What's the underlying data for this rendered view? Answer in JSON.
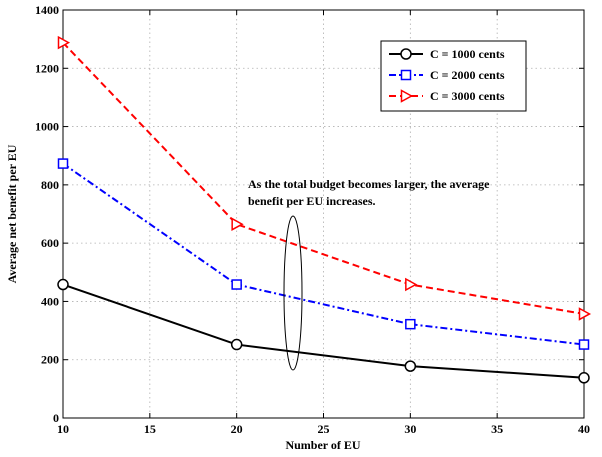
{
  "chart_data": {
    "type": "line",
    "xlabel": "Number of EU",
    "ylabel": "Average net benefit per EU",
    "xlim": [
      10,
      40
    ],
    "ylim": [
      0,
      1400
    ],
    "xticks": [
      10,
      15,
      20,
      25,
      30,
      35,
      40
    ],
    "yticks": [
      0,
      200,
      400,
      600,
      800,
      1000,
      1200,
      1400
    ],
    "grid": true,
    "legend_position": "top-right",
    "x": [
      10,
      20,
      30,
      40
    ],
    "series": [
      {
        "name": "C = 1000 cents",
        "values": [
          458,
          252,
          178,
          138
        ],
        "color": "#000000",
        "dash": "solid",
        "marker": "circle"
      },
      {
        "name": "C = 2000 cents",
        "values": [
          873,
          458,
          322,
          252
        ],
        "color": "#0000ff",
        "dash": "dashdot",
        "marker": "square"
      },
      {
        "name": "C = 3000 cents",
        "values": [
          1288,
          665,
          458,
          357
        ],
        "color": "#ff0000",
        "dash": "dashed",
        "marker": "triangle-right"
      }
    ],
    "annotation": {
      "line1": "As the total budget becomes larger, the average",
      "line2": "benefit per EU increases."
    }
  }
}
